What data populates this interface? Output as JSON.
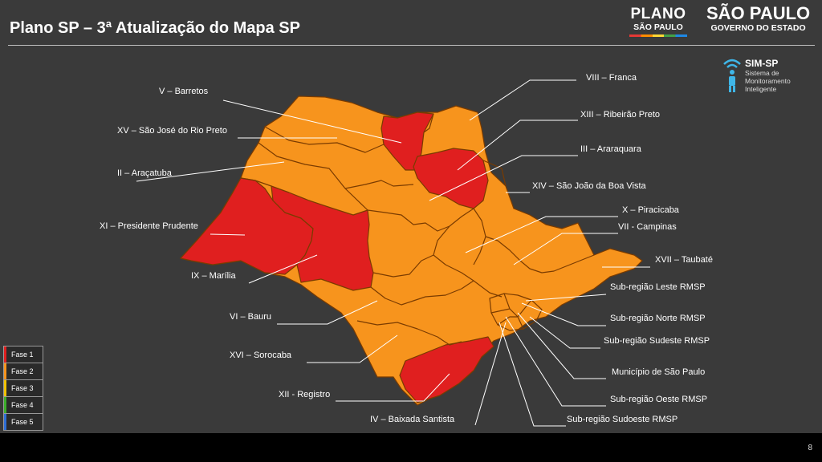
{
  "title": "Plano SP – 3ª Atualização do Mapa SP",
  "logos": {
    "plano_line1": "PLANO",
    "plano_line2": "SÃO PAULO",
    "sp_line1": "SÃO PAULO",
    "sp_line2": "GOVERNO DO ESTADO"
  },
  "simsp": {
    "name": "SIM-SP",
    "subtitle_line1": "Sistema de",
    "subtitle_line2": "Monitoramento",
    "subtitle_line3": "Inteligente",
    "icon": "wifi-person-icon"
  },
  "colors": {
    "fase1": "#e01f1f",
    "fase2": "#f7941d",
    "fase3": "#f2c200",
    "fase4": "#3dae2b",
    "fase5": "#2f6fd6",
    "background": "#3a3a3a",
    "border": "#7a3b00"
  },
  "regions": {
    "v": "V – Barretos",
    "xv": "XV – São José do Rio Preto",
    "ii": "II – Araçatuba",
    "xi": "XI – Presidente Prudente",
    "ix": "IX – Marília",
    "vi": "VI – Bauru",
    "xvi": "XVI – Sorocaba",
    "xii": "XII - Registro",
    "iv": "IV – Baixada Santista",
    "viii": "VIII – Franca",
    "xiii": "XIII – Ribeirão Preto",
    "iii": "III – Araraquara",
    "xiv": "XIV – São João da Boa Vista",
    "x": "X – Piracicaba",
    "vii": "VII - Campinas",
    "xvii": "XVII – Taubaté",
    "rmsp_leste": "Sub-região Leste RMSP",
    "rmsp_norte": "Sub-região Norte RMSP",
    "rmsp_sudeste": "Sub-região Sudeste RMSP",
    "municipio": "Município de São Paulo",
    "rmsp_oeste": "Sub-região Oeste RMSP",
    "rmsp_sudoeste": "Sub-região Sudoeste RMSP"
  },
  "region_phases": {
    "v": 2,
    "xv": 2,
    "ii": 2,
    "xi": 1,
    "ix": 1,
    "vi": 2,
    "xvi": 2,
    "xii": 1,
    "iv": 2,
    "viii": 2,
    "xiii": 1,
    "iii": 1,
    "xiv": 2,
    "x": 2,
    "vii": 2,
    "xvii": 2,
    "rmsp_leste": 2,
    "rmsp_norte": 2,
    "rmsp_sudeste": 2,
    "municipio": 2,
    "rmsp_oeste": 2,
    "rmsp_sudoeste": 2
  },
  "legend": [
    {
      "label": "Fase 1",
      "color": "#e01f1f"
    },
    {
      "label": "Fase 2",
      "color": "#f7941d"
    },
    {
      "label": "Fase 3",
      "color": "#f2c200"
    },
    {
      "label": "Fase 4",
      "color": "#3dae2b"
    },
    {
      "label": "Fase 5",
      "color": "#2f6fd6"
    }
  ],
  "page_number": "8"
}
